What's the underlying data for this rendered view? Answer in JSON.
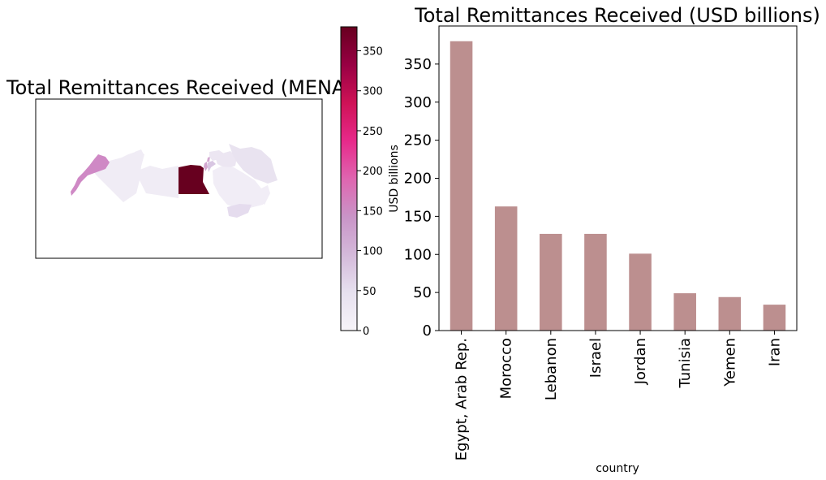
{
  "chart_data": [
    {
      "type": "map",
      "title": "Total Remittances Received (MENA)",
      "colorbar": {
        "label": "USD billions",
        "range": [
          0,
          380
        ],
        "ticks": [
          0,
          50,
          100,
          150,
          200,
          250,
          300,
          350
        ],
        "colormap": "PuRd",
        "colors": [
          "#f7f4f9",
          "#e7e1ef",
          "#d4b9da",
          "#c994c7",
          "#df65b0",
          "#e7298a",
          "#ce1256",
          "#980043",
          "#67001f"
        ]
      },
      "regions": [
        {
          "name": "Egypt, Arab Rep.",
          "value": 380
        },
        {
          "name": "Morocco",
          "value": 163
        },
        {
          "name": "Lebanon",
          "value": 127
        },
        {
          "name": "Israel",
          "value": 127
        },
        {
          "name": "Jordan",
          "value": 101
        },
        {
          "name": "Tunisia",
          "value": 49
        },
        {
          "name": "Yemen",
          "value": 44
        },
        {
          "name": "Iran",
          "value": 34
        }
      ]
    },
    {
      "type": "bar",
      "title": "Total Remittances Received (USD billions)",
      "xlabel": "country",
      "ylabel": "",
      "categories": [
        "Egypt, Arab Rep.",
        "Morocco",
        "Lebanon",
        "Israel",
        "Jordan",
        "Tunisia",
        "Yemen",
        "Iran"
      ],
      "values": [
        380,
        163,
        127,
        127,
        101,
        49,
        44,
        34
      ],
      "ylim": [
        0,
        400
      ],
      "yticks": [
        0,
        50,
        100,
        150,
        200,
        250,
        300,
        350
      ],
      "bar_color": "#bc8f8f",
      "grid": false,
      "legend": "none"
    }
  ]
}
